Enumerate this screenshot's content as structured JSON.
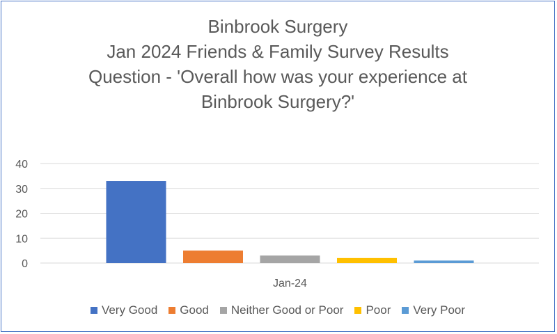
{
  "chart_data": {
    "type": "bar",
    "title_lines": [
      "Binbrook Surgery",
      "Jan 2024 Friends & Family Survey Results",
      "Question - 'Overall how was your experience at",
      "Binbrook Surgery?'"
    ],
    "categories": [
      "Jan-24"
    ],
    "series": [
      {
        "name": "Very Good",
        "values": [
          33
        ],
        "color": "#4472c4"
      },
      {
        "name": "Good",
        "values": [
          5
        ],
        "color": "#ed7d31"
      },
      {
        "name": "Neither Good or Poor",
        "values": [
          3
        ],
        "color": "#a5a5a5"
      },
      {
        "name": "Poor",
        "values": [
          2
        ],
        "color": "#ffc000"
      },
      {
        "name": "Very Poor",
        "values": [
          1
        ],
        "color": "#5b9bd5"
      }
    ],
    "xlabel": "",
    "ylabel": "",
    "ylim": [
      0,
      40
    ],
    "yticks": [
      0,
      10,
      20,
      30,
      40
    ],
    "grid": true,
    "legend_position": "bottom"
  }
}
